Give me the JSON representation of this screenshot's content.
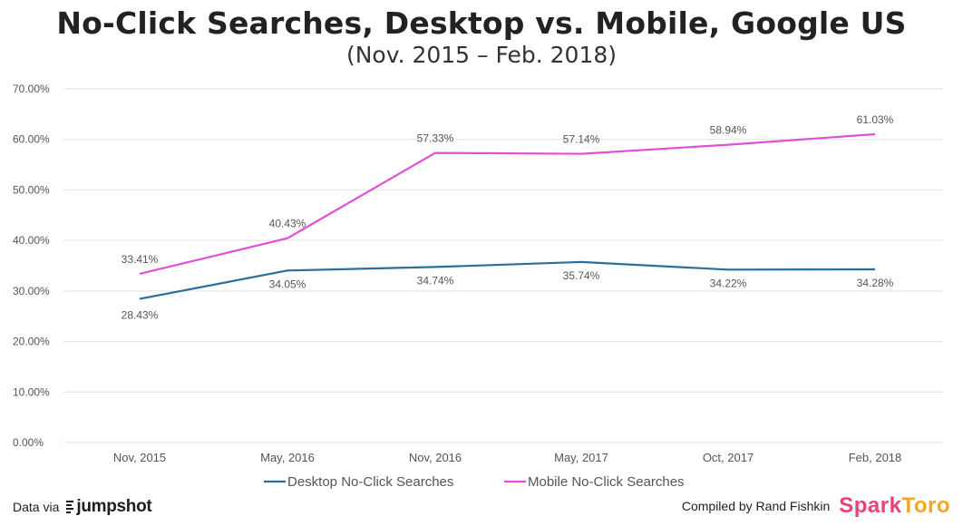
{
  "header": {
    "title": "No-Click Searches, Desktop vs. Mobile, Google US",
    "subtitle": "(Nov. 2015 – Feb. 2018)"
  },
  "footer": {
    "data_via_label": "Data via",
    "data_source_logo": "jumpshot",
    "compiled_by": "Compiled by Rand Fishkin",
    "brand_logo_part1": "Spark",
    "brand_logo_part2": "Toro"
  },
  "colors": {
    "desktop": "#2a6f9b",
    "mobile": "#e14fd8",
    "grid": "#e2e2e2",
    "text": "#555555"
  },
  "chart_data": {
    "type": "line",
    "categories": [
      "Nov, 2015",
      "May, 2016",
      "Nov, 2016",
      "May, 2017",
      "Oct, 2017",
      "Feb, 2018"
    ],
    "ylim": [
      0,
      70
    ],
    "yticks": [
      0,
      10,
      20,
      30,
      40,
      50,
      60,
      70
    ],
    "ytick_labels": [
      "0.00%",
      "10.00%",
      "20.00%",
      "30.00%",
      "40.00%",
      "50.00%",
      "60.00%",
      "70.00%"
    ],
    "grid": true,
    "legend_position": "bottom",
    "series": [
      {
        "name": "Desktop No-Click Searches",
        "values": [
          28.43,
          34.05,
          34.74,
          35.74,
          34.22,
          34.28
        ],
        "labels": [
          "28.43%",
          "34.05%",
          "34.74%",
          "35.74%",
          "34.22%",
          "34.28%"
        ]
      },
      {
        "name": "Mobile No-Click Searches",
        "values": [
          33.41,
          40.43,
          57.33,
          57.14,
          58.94,
          61.03
        ],
        "labels": [
          "33.41%",
          "40.43%",
          "57.33%",
          "57.14%",
          "58.94%",
          "61.03%"
        ]
      }
    ]
  }
}
